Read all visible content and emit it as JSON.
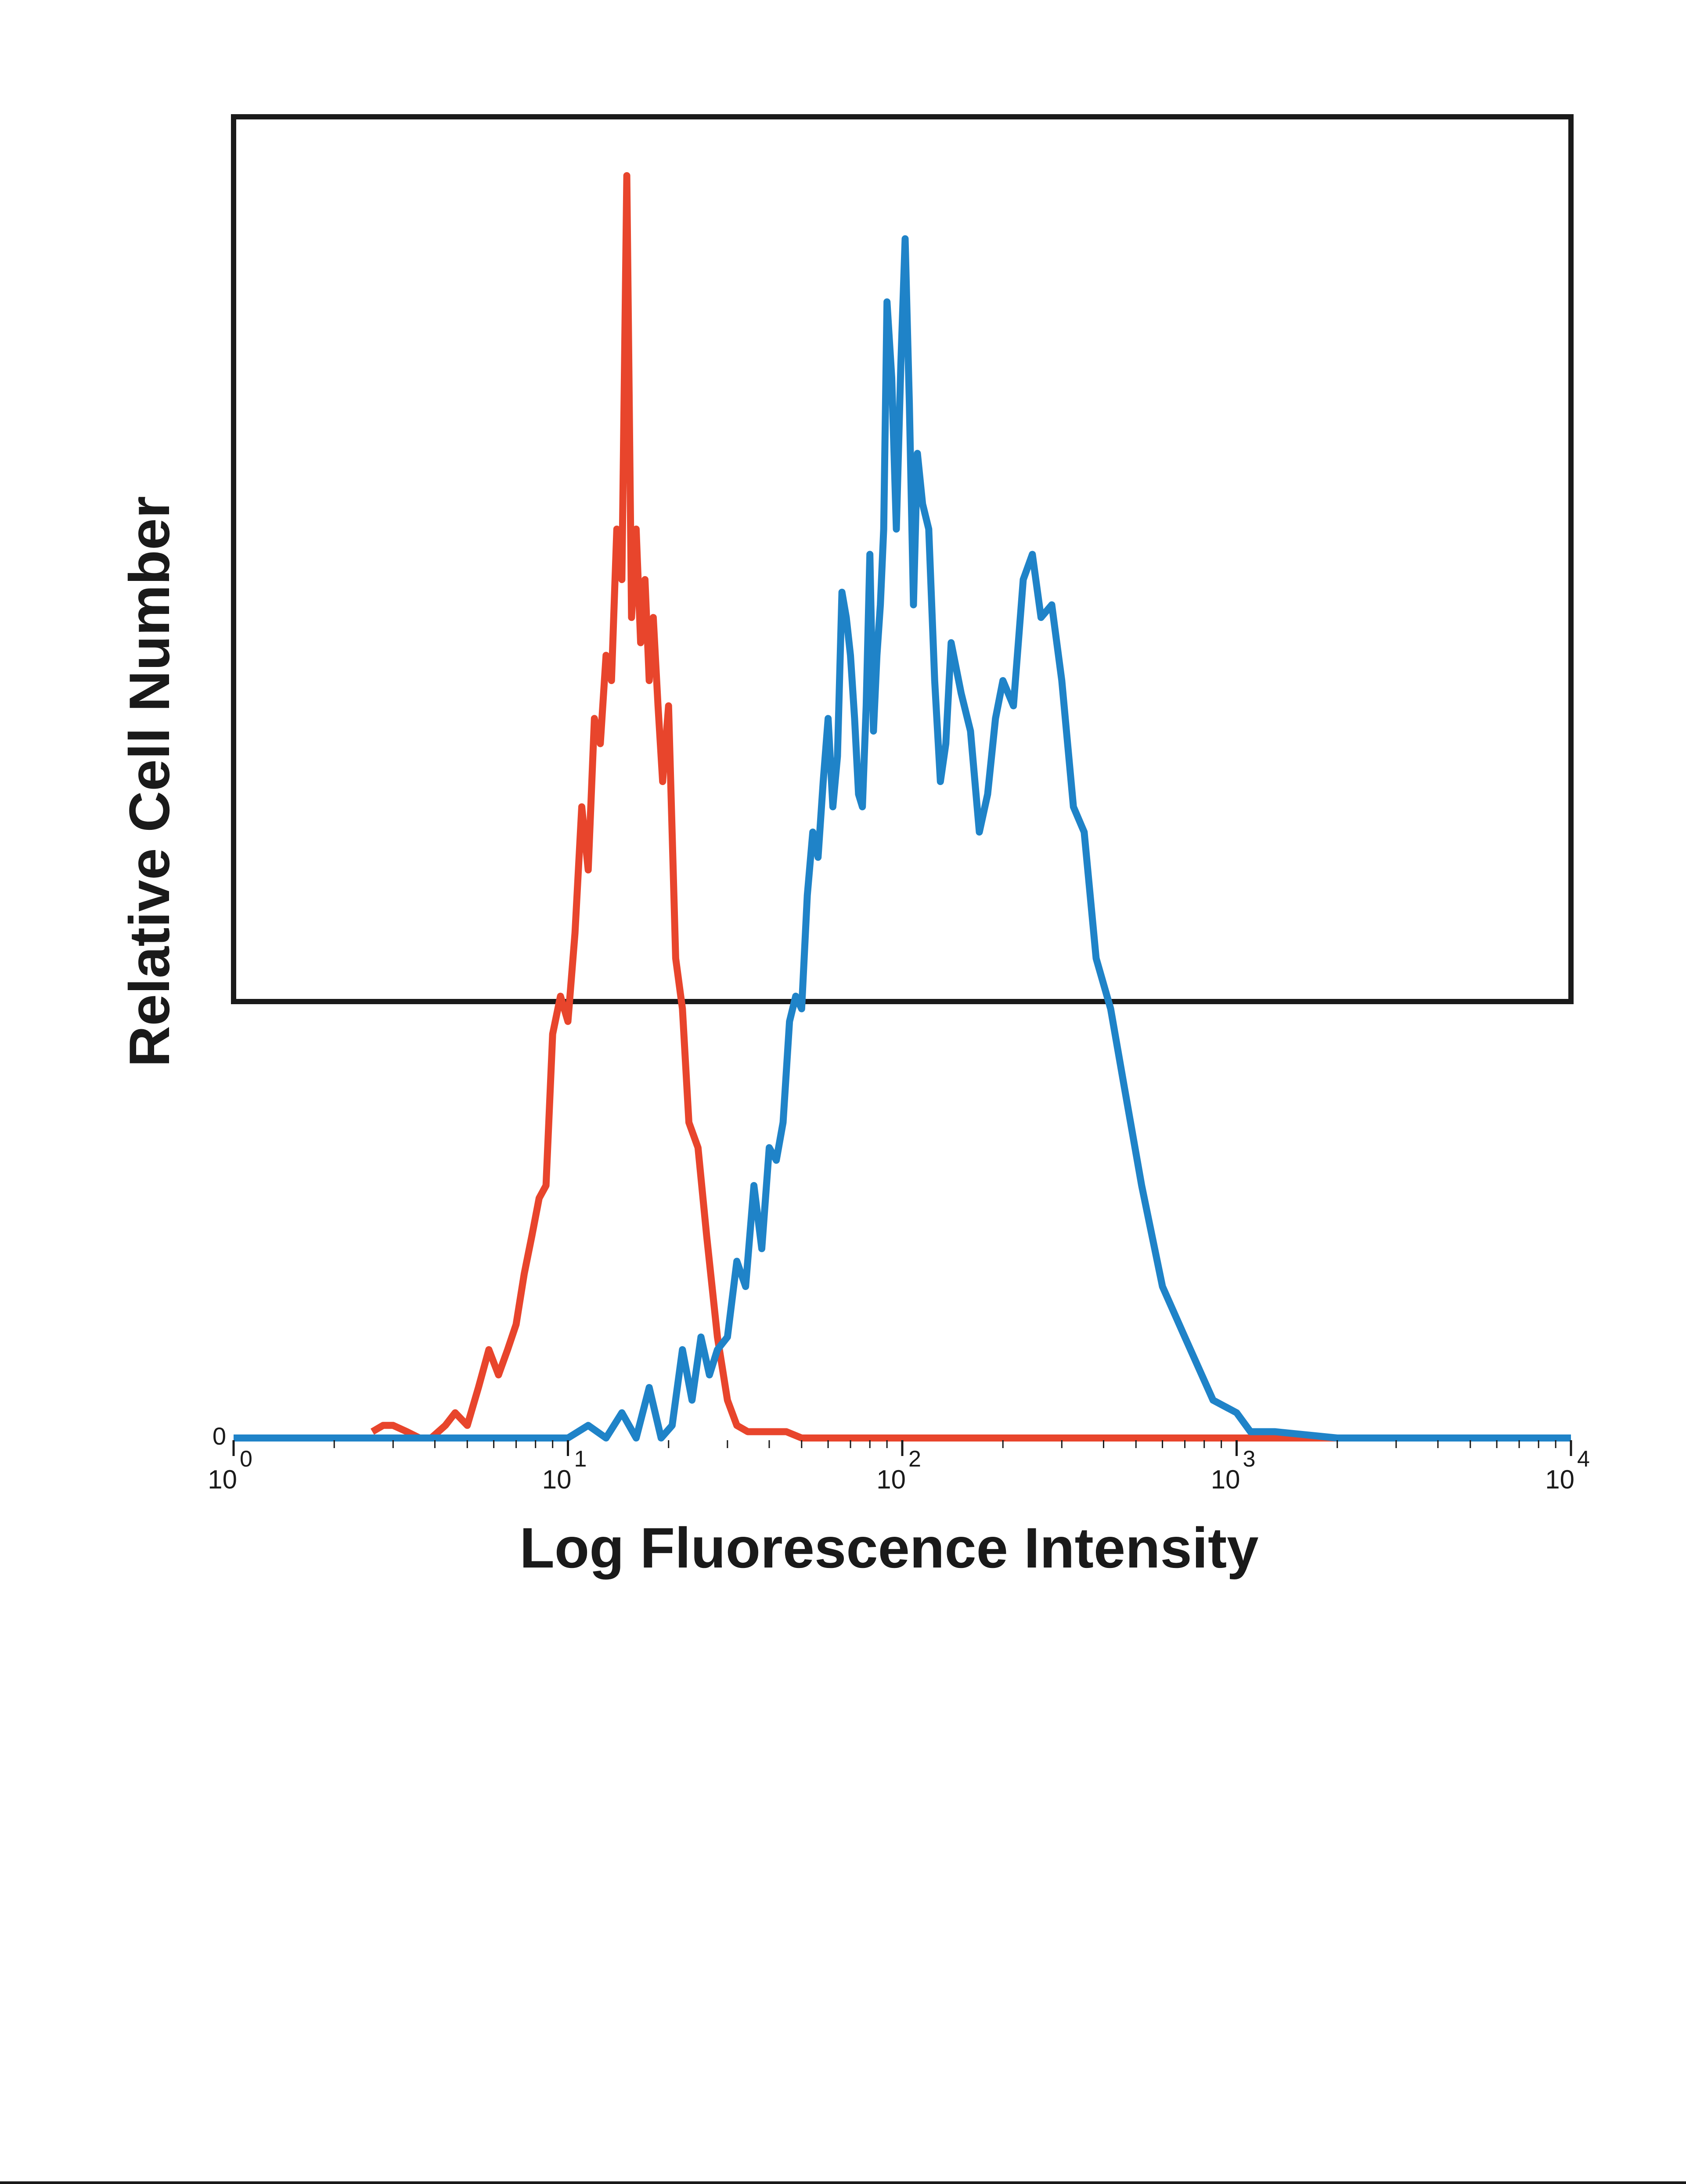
{
  "chart_data": {
    "type": "line",
    "title": "",
    "xlabel": "Log Fluorescence Intensity",
    "ylabel": "Relative Cell Number",
    "x_scale": "log",
    "xlim": [
      1,
      10000
    ],
    "ylim": [
      0,
      100
    ],
    "x_ticks": [
      {
        "base": "10",
        "exp": "0"
      },
      {
        "base": "10",
        "exp": "1"
      },
      {
        "base": "10",
        "exp": "2"
      },
      {
        "base": "10",
        "exp": "3"
      },
      {
        "base": "10",
        "exp": "4"
      }
    ],
    "y_tick_label": "0",
    "grid": false,
    "legend": "none",
    "series": [
      {
        "color": "#e8452c",
        "x": [
          2.6,
          2.8,
          3.0,
          3.3,
          3.6,
          3.9,
          4.3,
          4.6,
          5.0,
          5.4,
          5.8,
          6.2,
          6.6,
          7.0,
          7.4,
          7.8,
          8.2,
          8.6,
          9.0,
          9.5,
          10.0,
          10.5,
          11.0,
          11.5,
          12.0,
          12.5,
          13.0,
          13.5,
          14.0,
          14.5,
          15.0,
          15.5,
          16.0,
          16.5,
          17.0,
          17.5,
          18.0,
          18.6,
          19.2,
          20.0,
          21.0,
          22.0,
          23.0,
          24.5,
          26.0,
          28.0,
          30.0,
          32.0,
          34.5,
          37.0,
          40.0,
          45.0,
          50.0,
          60.0,
          80.0,
          100.0,
          150.0,
          200.0,
          300.0,
          400.0,
          600.0,
          1000.0,
          2000.0,
          5000.0,
          10000.0
        ],
        "y": [
          0.5,
          1,
          1,
          0.5,
          0,
          0,
          1,
          2,
          1,
          4,
          7,
          5,
          7,
          9,
          13,
          16,
          19,
          20,
          32,
          35,
          33,
          40,
          50,
          45,
          57,
          55,
          62,
          60,
          72,
          68,
          100,
          65,
          72,
          63,
          68,
          60,
          65,
          58,
          52,
          58,
          38,
          34,
          25,
          23,
          16,
          8,
          3,
          1,
          0.5,
          0.5,
          0.5,
          0.5,
          0,
          0,
          0,
          0,
          0,
          0,
          0,
          0,
          0,
          0,
          0,
          0,
          0
        ]
      },
      {
        "color": "#1f83c8",
        "x": [
          1.0,
          5.0,
          10.0,
          11.5,
          13.0,
          14.5,
          16.0,
          17.5,
          19.0,
          20.5,
          22.0,
          23.5,
          25.0,
          26.5,
          28.0,
          30.0,
          32.0,
          34.0,
          36.0,
          38.0,
          40.0,
          42.0,
          44.0,
          46.0,
          48.0,
          50.0,
          52.0,
          54.0,
          56.0,
          58.0,
          60.0,
          62.0,
          64.0,
          66.0,
          68.0,
          70.0,
          72.0,
          74.0,
          76.0,
          78.0,
          80.0,
          82.0,
          84.0,
          86.0,
          88.0,
          90.0,
          93.0,
          96.0,
          99.0,
          102.0,
          105.0,
          108.0,
          111.0,
          115.0,
          120.0,
          125.0,
          130.0,
          135.0,
          140.0,
          150.0,
          160.0,
          170.0,
          180.0,
          190.0,
          200.0,
          215.0,
          230.0,
          245.0,
          260.0,
          280.0,
          300.0,
          325.0,
          350.0,
          380.0,
          420.0,
          460.0,
          520.0,
          600.0,
          700.0,
          850.0,
          1000.0,
          1100.0,
          1300.0,
          2000.0,
          5000.0,
          10000.0
        ],
        "y": [
          0,
          0,
          0,
          1,
          0,
          2,
          0,
          4,
          0,
          1,
          7,
          3,
          8,
          5,
          7,
          8,
          14,
          12,
          20,
          15,
          23,
          22,
          25,
          33,
          35,
          34,
          43,
          48,
          46,
          52,
          57,
          50,
          54,
          67,
          65,
          62,
          57,
          51,
          50,
          58,
          70,
          56,
          62,
          66,
          72,
          90,
          84,
          72,
          85,
          95,
          82,
          66,
          78,
          74,
          72,
          60,
          52,
          55,
          63,
          59,
          56,
          48,
          51,
          57,
          60,
          58,
          68,
          70,
          65,
          66,
          60,
          50,
          48,
          38,
          34,
          28,
          20,
          12,
          8,
          3,
          2,
          0.5,
          0.5,
          0,
          0,
          0
        ]
      }
    ]
  }
}
